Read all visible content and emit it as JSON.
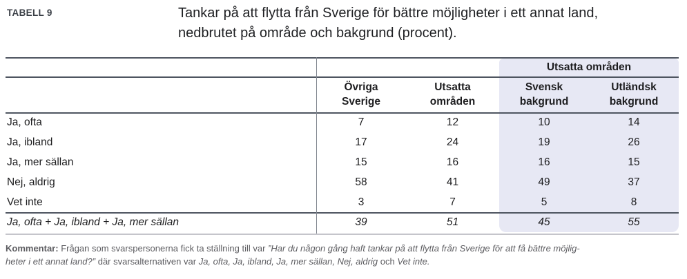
{
  "document": {
    "table_label": "TABELL 9",
    "title_line1": "Tankar på att flytta från Sverige för bättre möjligheter i ett annat land,",
    "title_line2": "nedbrutet på område och bakgrund (procent)."
  },
  "table": {
    "group_header": "Utsatta områden",
    "columns": [
      {
        "line1": "Övriga",
        "line2": "Sverige"
      },
      {
        "line1": "Utsatta",
        "line2": "områden"
      },
      {
        "line1": "Svensk",
        "line2": "bakgrund"
      },
      {
        "line1": "Utländsk",
        "line2": "bakgrund"
      }
    ],
    "rows": [
      {
        "label": "Ja, ofta",
        "values": [
          "7",
          "12",
          "10",
          "14"
        ]
      },
      {
        "label": "Ja, ibland",
        "values": [
          "17",
          "24",
          "19",
          "26"
        ]
      },
      {
        "label": "Ja, mer sällan",
        "values": [
          "15",
          "16",
          "16",
          "15"
        ]
      },
      {
        "label": "Nej, aldrig",
        "values": [
          "58",
          "41",
          "49",
          "37"
        ]
      },
      {
        "label": "Vet inte",
        "values": [
          "3",
          "7",
          "5",
          "8"
        ]
      },
      {
        "label": "Ja, ofta + Ja, ibland + Ja, mer sällan",
        "values": [
          "39",
          "51",
          "45",
          "55"
        ]
      }
    ]
  },
  "comment": {
    "bold_label": "Kommentar:",
    "text_1": "Frågan som svarspersonerna fick ta ställning till var",
    "quote_line1": "”Har du någon gång haft tankar på att flytta från Sverige för att få bättre möjlig-",
    "quote_line2": "heter i ett annat land?”",
    "text_2": "där svarsalternativen var",
    "options_italic": "Ja, ofta, Ja, ibland, Ja, mer sällan, Nej, aldrig",
    "text_3": "och",
    "options_italic_2": "Vet inte."
  },
  "colors": {
    "highlight_column_bg": "#e7e8f4",
    "rule_dark": "#4e5560",
    "rule_light": "#c5c5cb",
    "text_primary": "#1d1d1f",
    "comment_text": "#5c5c60"
  }
}
